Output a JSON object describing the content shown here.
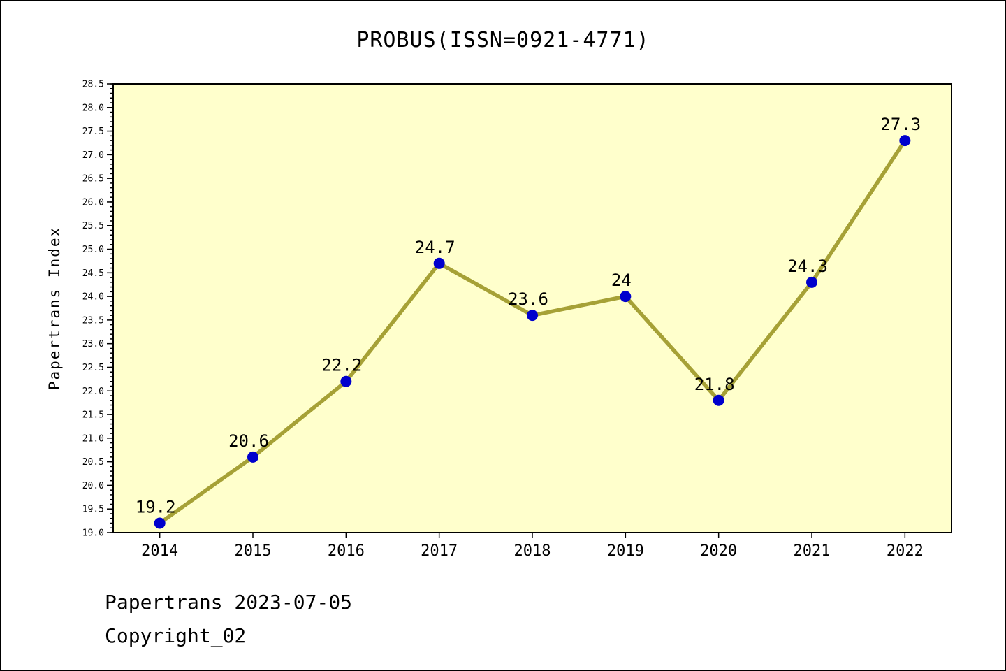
{
  "chart_data": {
    "type": "line",
    "title": "PROBUS(ISSN=0921-4771)",
    "ylabel": "Papertrans Index",
    "x": [
      2014,
      2015,
      2016,
      2017,
      2018,
      2019,
      2020,
      2021,
      2022
    ],
    "values": [
      19.2,
      20.6,
      22.2,
      24.7,
      23.6,
      24,
      21.8,
      24.3,
      27.3
    ],
    "point_labels": [
      "19.2",
      "20.6",
      "22.2",
      "24.7",
      "23.6",
      "24",
      "21.8",
      "24.3",
      "27.3"
    ],
    "xlim": [
      2013.5,
      2022.5
    ],
    "ylim": [
      19.0,
      28.5
    ],
    "ytick_major": 0.5,
    "ytick_minor": 0.1,
    "grid": false,
    "legend": "none",
    "colors": {
      "plot_bg": "#FFFFCC",
      "line": "#A6A136",
      "marker": "#0000CD",
      "axis": "#000000",
      "text": "#000000"
    }
  },
  "footer": {
    "line1": "Papertrans 2023-07-05",
    "line2": "Copyright_02"
  }
}
